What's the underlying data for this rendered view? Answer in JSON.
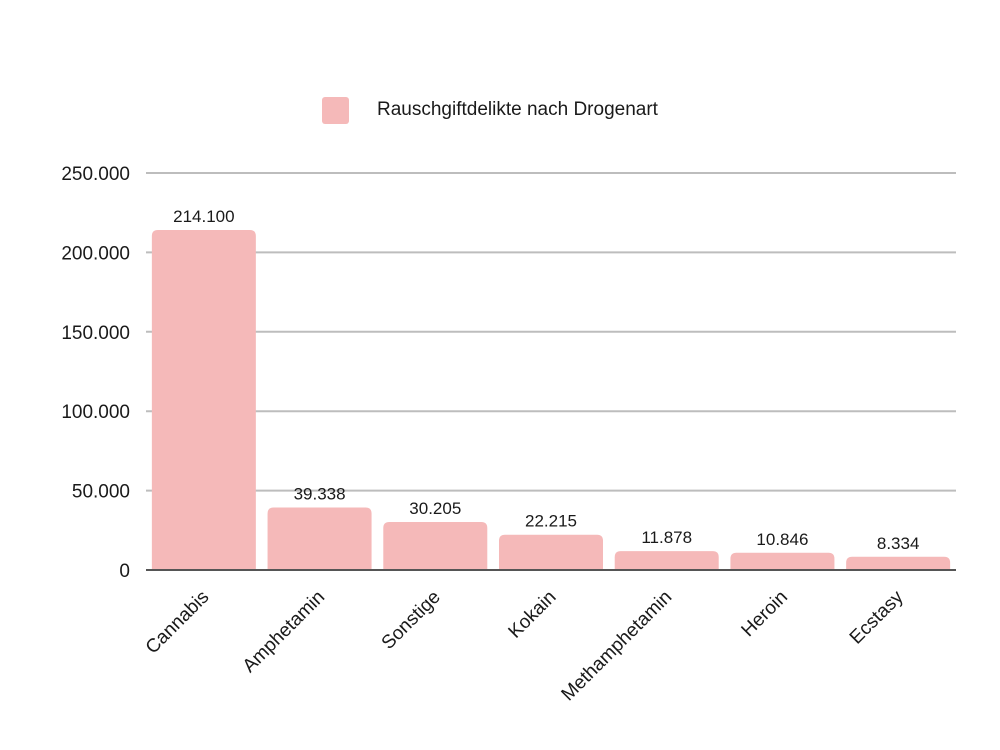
{
  "chart_data": {
    "type": "bar",
    "title": "",
    "xlabel": "",
    "ylabel": "",
    "ylim": [
      0,
      250000
    ],
    "yticks": [
      0,
      50000,
      100000,
      150000,
      200000,
      250000
    ],
    "ytick_labels": [
      "0",
      "50.000",
      "100.000",
      "150.000",
      "200.000",
      "250.000"
    ],
    "categories": [
      "Cannabis",
      "Amphetamin",
      "Sonstige",
      "Kokain",
      "Methamphetamin",
      "Heroin",
      "Ecstasy"
    ],
    "series": [
      {
        "name": "Rauschgiftdelikte nach Drogenart",
        "values": [
          214100,
          39338,
          30205,
          22215,
          11878,
          10846,
          8334
        ],
        "labels": [
          "214.100",
          "39.338",
          "30.205",
          "22.215",
          "11.878",
          "10.846",
          "8.334"
        ]
      }
    ],
    "grid": true,
    "legend_position": "top-center",
    "colors": {
      "bar": "#f5b9b9",
      "grid": "#bdbdbd",
      "axis": "#555555"
    }
  }
}
